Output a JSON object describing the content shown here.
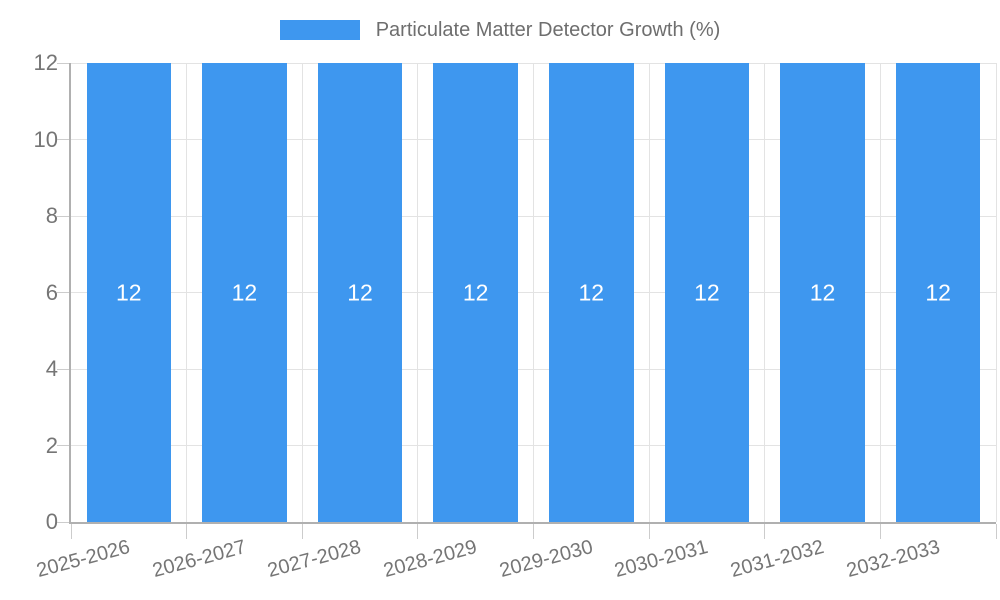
{
  "chart_data": {
    "type": "bar",
    "title": "Particulate Matter Detector Growth (%)",
    "categories": [
      "2025-2026",
      "2026-2027",
      "2027-2028",
      "2028-2029",
      "2029-2030",
      "2030-2031",
      "2031-2032",
      "2032-2033"
    ],
    "series": [
      {
        "name": "Particulate Matter Detector Growth (%)",
        "values": [
          12,
          12,
          12,
          12,
          12,
          12,
          12,
          12
        ]
      }
    ],
    "bar_labels": [
      "12",
      "12",
      "12",
      "12",
      "12",
      "12",
      "12",
      "12"
    ],
    "xlabel": "",
    "ylabel": "",
    "ylim": [
      0,
      12
    ],
    "yticks": [
      0,
      2,
      4,
      6,
      8,
      10,
      12
    ],
    "grid": true,
    "legend_position": "top"
  },
  "colors": {
    "bar": "#3e97ef",
    "bar_label": "#ffffff",
    "gridline": "#e3e3e3",
    "axis_line": "#b0b0b0",
    "tick_text": "#757575",
    "legend_text": "#6e6e6e",
    "background": "#ffffff"
  }
}
